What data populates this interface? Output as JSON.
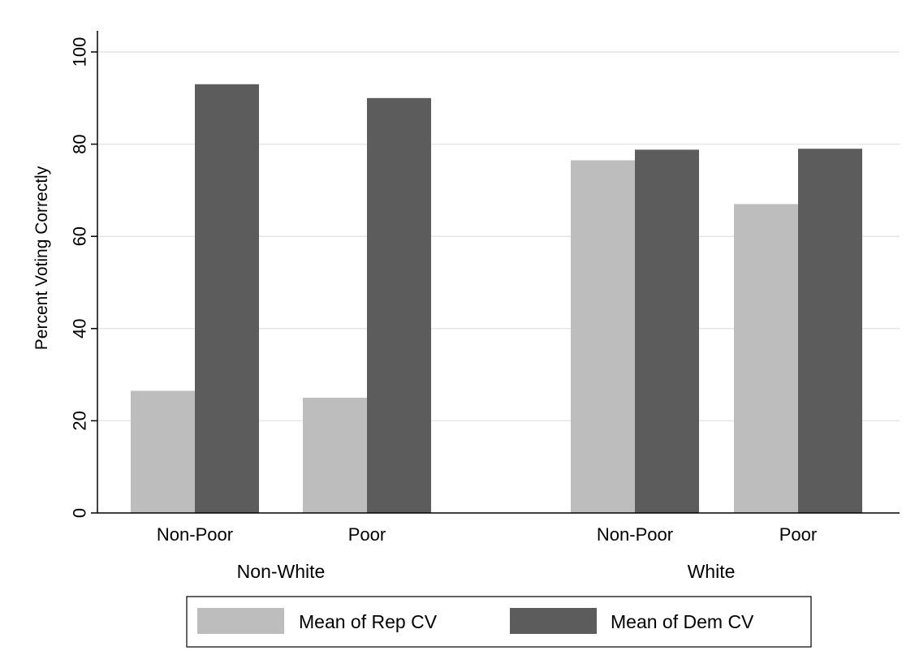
{
  "chart_data": {
    "type": "bar",
    "ylabel": "Percent Voting Correctly",
    "ylim": [
      0,
      100
    ],
    "yticks": [
      0,
      20,
      40,
      60,
      80,
      100
    ],
    "grid": true,
    "legend_position": "bottom",
    "groups": [
      {
        "label": "Non-White",
        "categories": [
          "Non-Poor",
          "Poor"
        ]
      },
      {
        "label": "White",
        "categories": [
          "Non-Poor",
          "Poor"
        ]
      }
    ],
    "categories": [
      "Non-Poor",
      "Poor",
      "Non-Poor",
      "Poor"
    ],
    "series": [
      {
        "name": "Mean of Rep CV",
        "color": "#bdbdbd",
        "values": [
          26.5,
          25.0,
          76.5,
          67.0
        ]
      },
      {
        "name": "Mean of Dem CV",
        "color": "#5c5c5c",
        "values": [
          93.0,
          90.0,
          78.8,
          79.0
        ]
      }
    ],
    "colors": {
      "grid": "#e6e6e6",
      "axis": "#000000"
    }
  }
}
